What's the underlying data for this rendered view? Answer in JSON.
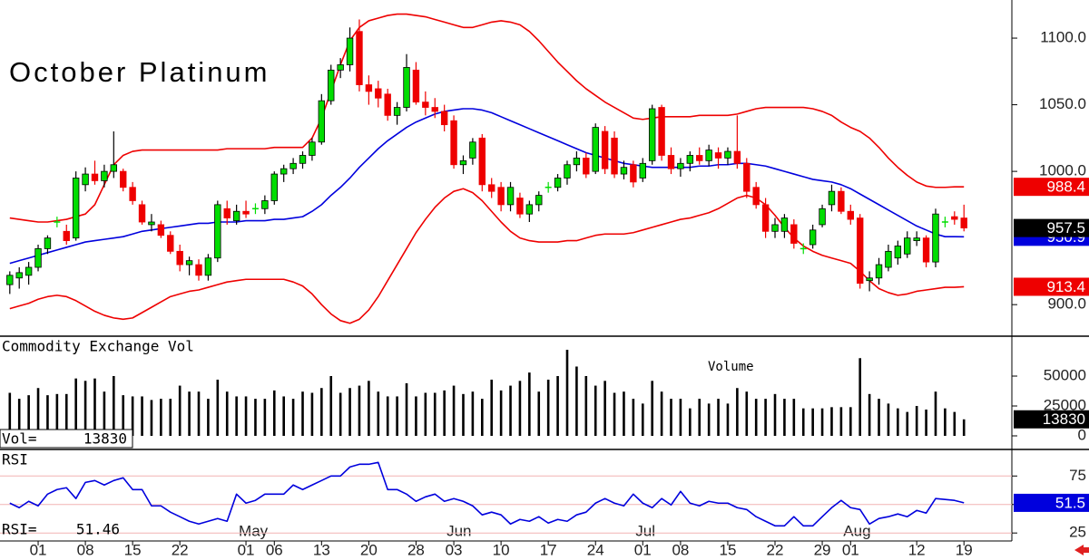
{
  "chart_data": [
    {
      "type": "candlestick",
      "title": "October Platinum",
      "categories": [
        null,
        null,
        null,
        "01",
        null,
        null,
        null,
        null,
        "08",
        null,
        null,
        null,
        null,
        "15",
        null,
        null,
        null,
        null,
        "22",
        null,
        null,
        null,
        null,
        null,
        null,
        "01",
        null,
        null,
        "06",
        null,
        null,
        null,
        null,
        "13",
        null,
        null,
        null,
        null,
        "20",
        null,
        null,
        null,
        null,
        "28",
        null,
        null,
        null,
        "03",
        null,
        null,
        null,
        null,
        "10",
        null,
        null,
        null,
        null,
        "17",
        null,
        null,
        null,
        null,
        "24",
        null,
        null,
        null,
        null,
        "01",
        null,
        null,
        null,
        "08",
        null,
        null,
        null,
        null,
        "15",
        null,
        null,
        null,
        null,
        "22",
        null,
        null,
        null,
        null,
        "29",
        null,
        null,
        "01",
        null,
        null,
        null,
        null,
        null,
        null,
        "12",
        null,
        null,
        null,
        null,
        "19"
      ],
      "months": [
        null,
        null,
        null,
        null,
        null,
        null,
        null,
        null,
        null,
        null,
        null,
        null,
        null,
        null,
        null,
        null,
        null,
        null,
        null,
        null,
        null,
        null,
        null,
        null,
        null,
        "May",
        null,
        null,
        null,
        null,
        null,
        null,
        null,
        null,
        null,
        null,
        null,
        null,
        null,
        null,
        null,
        null,
        null,
        null,
        null,
        null,
        null,
        "Jun",
        null,
        null,
        null,
        null,
        null,
        null,
        null,
        null,
        null,
        null,
        null,
        null,
        null,
        null,
        null,
        null,
        null,
        null,
        null,
        "Jul",
        null,
        null,
        null,
        null,
        null,
        null,
        null,
        null,
        null,
        null,
        null,
        null,
        null,
        null,
        null,
        null,
        null,
        null,
        null,
        null,
        null,
        "Aug",
        null,
        null,
        null,
        null,
        null,
        null,
        null,
        null,
        null,
        null,
        null,
        null
      ],
      "ohlc": [
        [
          915,
          925,
          908,
          922
        ],
        [
          920,
          928,
          912,
          924
        ],
        [
          922,
          932,
          915,
          928
        ],
        [
          928,
          945,
          925,
          942
        ],
        [
          942,
          952,
          938,
          950
        ],
        [
          962,
          966,
          958,
          962
        ],
        [
          955,
          960,
          945,
          948
        ],
        [
          950,
          1000,
          948,
          995
        ],
        [
          990,
          1003,
          985,
          998
        ],
        [
          998,
          1008,
          990,
          993
        ],
        [
          993,
          1005,
          988,
          1000
        ],
        [
          1000,
          1030,
          995,
          1005
        ],
        [
          1000,
          1002,
          985,
          988
        ],
        [
          988,
          992,
          975,
          978
        ],
        [
          975,
          978,
          960,
          962
        ],
        [
          960,
          968,
          955,
          962
        ],
        [
          960,
          963,
          950,
          952
        ],
        [
          952,
          955,
          938,
          940
        ],
        [
          940,
          945,
          925,
          930
        ],
        [
          930,
          936,
          922,
          933
        ],
        [
          930,
          934,
          918,
          922
        ],
        [
          922,
          938,
          918,
          935
        ],
        [
          935,
          978,
          932,
          975
        ],
        [
          972,
          978,
          960,
          965
        ],
        [
          963,
          975,
          960,
          970
        ],
        [
          970,
          978,
          965,
          968
        ],
        [
          972,
          976,
          968,
          972
        ],
        [
          972,
          982,
          968,
          978
        ],
        [
          978,
          1000,
          975,
          998
        ],
        [
          998,
          1005,
          992,
          1002
        ],
        [
          1002,
          1010,
          998,
          1006
        ],
        [
          1006,
          1015,
          1002,
          1012
        ],
        [
          1012,
          1025,
          1008,
          1022
        ],
        [
          1022,
          1058,
          1020,
          1053
        ],
        [
          1053,
          1080,
          1050,
          1076
        ],
        [
          1076,
          1085,
          1070,
          1080
        ],
        [
          1080,
          1108,
          1075,
          1100
        ],
        [
          1105,
          1114,
          1060,
          1065
        ],
        [
          1065,
          1072,
          1050,
          1060
        ],
        [
          1062,
          1068,
          1048,
          1055
        ],
        [
          1058,
          1062,
          1038,
          1042
        ],
        [
          1042,
          1052,
          1035,
          1048
        ],
        [
          1048,
          1088,
          1045,
          1078
        ],
        [
          1076,
          1082,
          1050,
          1052
        ],
        [
          1052,
          1060,
          1042,
          1048
        ],
        [
          1048,
          1055,
          1040,
          1045
        ],
        [
          1045,
          1050,
          1030,
          1035
        ],
        [
          1038,
          1042,
          1002,
          1005
        ],
        [
          1005,
          1012,
          998,
          1008
        ],
        [
          1010,
          1025,
          1005,
          1022
        ],
        [
          1025,
          1028,
          985,
          990
        ],
        [
          990,
          995,
          980,
          985
        ],
        [
          988,
          992,
          970,
          975
        ],
        [
          975,
          992,
          970,
          988
        ],
        [
          980,
          984,
          965,
          968
        ],
        [
          968,
          978,
          962,
          975
        ],
        [
          975,
          985,
          970,
          982
        ],
        [
          988,
          992,
          984,
          988
        ],
        [
          988,
          998,
          985,
          995
        ],
        [
          995,
          1008,
          990,
          1005
        ],
        [
          1005,
          1015,
          1000,
          1010
        ],
        [
          1010,
          1014,
          995,
          998
        ],
        [
          1000,
          1036,
          998,
          1033
        ],
        [
          1030,
          1034,
          998,
          1002
        ],
        [
          1025,
          1030,
          995,
          998
        ],
        [
          998,
          1008,
          994,
          1003
        ],
        [
          1005,
          1008,
          988,
          992
        ],
        [
          995,
          1010,
          992,
          1006
        ],
        [
          1008,
          1050,
          1005,
          1047
        ],
        [
          1048,
          1050,
          1008,
          1012
        ],
        [
          1012,
          1018,
          998,
          1002
        ],
        [
          1002,
          1010,
          996,
          1006
        ],
        [
          1006,
          1015,
          1000,
          1012
        ],
        [
          1012,
          1018,
          1005,
          1008
        ],
        [
          1008,
          1020,
          1004,
          1016
        ],
        [
          1014,
          1018,
          1002,
          1010
        ],
        [
          1010,
          1018,
          1005,
          1015
        ],
        [
          1015,
          1042,
          1002,
          1006
        ],
        [
          1006,
          1010,
          980,
          985
        ],
        [
          988,
          992,
          972,
          975
        ],
        [
          975,
          980,
          950,
          955
        ],
        [
          955,
          965,
          950,
          960
        ],
        [
          955,
          968,
          950,
          965
        ],
        [
          960,
          964,
          942,
          946
        ],
        [
          942,
          946,
          938,
          942
        ],
        [
          945,
          960,
          942,
          956
        ],
        [
          960,
          975,
          958,
          972
        ],
        [
          975,
          990,
          970,
          985
        ],
        [
          985,
          988,
          968,
          970
        ],
        [
          970,
          975,
          960,
          964
        ],
        [
          965,
          968,
          912,
          916
        ],
        [
          918,
          925,
          910,
          920
        ],
        [
          920,
          935,
          915,
          930
        ],
        [
          928,
          945,
          925,
          940
        ],
        [
          935,
          948,
          930,
          944
        ],
        [
          938,
          955,
          935,
          950
        ],
        [
          948,
          955,
          944,
          950
        ],
        [
          950,
          952,
          928,
          932
        ],
        [
          932,
          972,
          928,
          968
        ],
        [
          962,
          966,
          958,
          962
        ],
        [
          966,
          970,
          960,
          964
        ],
        [
          965,
          975,
          955,
          957.5
        ]
      ],
      "upper": [
        965,
        964,
        963,
        962,
        962,
        963,
        964,
        966,
        968,
        975,
        990,
        1005,
        1012,
        1015,
        1016,
        1016,
        1016,
        1016,
        1016,
        1016,
        1016,
        1016,
        1016,
        1017,
        1017,
        1017,
        1017,
        1017,
        1018,
        1018,
        1018,
        1018,
        1025,
        1040,
        1060,
        1080,
        1098,
        1108,
        1113,
        1115,
        1117,
        1118,
        1118,
        1117,
        1116,
        1114,
        1112,
        1110,
        1108,
        1108,
        1110,
        1112,
        1113,
        1112,
        1110,
        1105,
        1098,
        1090,
        1082,
        1075,
        1068,
        1062,
        1057,
        1052,
        1048,
        1044,
        1040,
        1039,
        1040,
        1041,
        1041,
        1041,
        1041,
        1042,
        1042,
        1042,
        1042,
        1043,
        1045,
        1047,
        1048,
        1048,
        1048,
        1048,
        1048,
        1047,
        1045,
        1042,
        1037,
        1033,
        1030,
        1025,
        1018,
        1010,
        1003,
        997,
        992,
        989,
        988,
        988,
        988.4,
        988.4
      ],
      "middle": [
        931,
        933,
        935,
        937,
        939,
        941,
        943,
        945,
        947,
        948,
        949,
        950,
        951,
        953,
        955,
        956,
        957,
        958,
        959,
        960,
        961,
        961,
        962,
        962,
        962,
        963,
        963,
        963,
        964,
        964,
        965,
        966,
        970,
        975,
        982,
        988,
        995,
        1003,
        1010,
        1017,
        1023,
        1028,
        1033,
        1037,
        1040,
        1043,
        1045,
        1046,
        1047,
        1047,
        1046,
        1044,
        1041,
        1038,
        1035,
        1032,
        1029,
        1026,
        1023,
        1020,
        1017,
        1014,
        1012,
        1010,
        1008,
        1006,
        1005,
        1004,
        1003,
        1003,
        1003,
        1003,
        1003,
        1004,
        1004,
        1005,
        1005,
        1006,
        1006,
        1005,
        1004,
        1002,
        1000,
        998,
        996,
        994,
        993,
        992,
        990,
        987,
        983,
        979,
        975,
        971,
        967,
        963,
        959,
        956,
        953,
        951,
        951,
        950.9
      ],
      "lower": [
        897,
        899,
        901,
        904,
        906,
        907,
        906,
        903,
        899,
        895,
        892,
        890,
        889,
        890,
        894,
        898,
        902,
        906,
        908,
        910,
        911,
        913,
        915,
        917,
        918,
        919,
        919,
        919,
        919,
        919,
        917,
        914,
        908,
        900,
        893,
        888,
        886,
        889,
        896,
        906,
        918,
        930,
        942,
        954,
        964,
        973,
        980,
        985,
        987,
        984,
        978,
        970,
        962,
        955,
        950,
        948,
        947,
        947,
        947,
        948,
        948,
        950,
        952,
        953,
        953,
        953,
        954,
        956,
        958,
        960,
        962,
        964,
        965,
        967,
        969,
        972,
        976,
        980,
        982,
        980,
        975,
        967,
        958,
        950,
        944,
        940,
        937,
        935,
        933,
        931,
        925,
        918,
        912,
        909,
        907,
        908,
        910,
        911,
        912,
        913,
        913,
        913.4
      ],
      "up_color": "#00dd00",
      "down_color": "#ee0000",
      "band_color": "#ee0000",
      "middle_color": "#0000dd",
      "last_color": "#000000",
      "ylim": [
        877,
        1128.6
      ],
      "yticks": [
        {
          "value": 900,
          "label": "900.0"
        },
        {
          "value": 1000,
          "label": "1000.0"
        },
        {
          "value": 1050,
          "label": "1050.0"
        },
        {
          "value": 1100,
          "label": "1100.0"
        }
      ]
    },
    {
      "type": "bar",
      "title": "Commodity Exchange Vol",
      "annotation": "Volume",
      "readout_label": "Vol=",
      "values": [
        36000,
        31000,
        34000,
        40000,
        34000,
        35000,
        35000,
        48000,
        46000,
        48000,
        37000,
        50000,
        34000,
        33000,
        33000,
        30000,
        31000,
        31000,
        42000,
        37000,
        37000,
        31000,
        47000,
        37000,
        33000,
        33000,
        31000,
        31000,
        38000,
        33000,
        31000,
        37000,
        36000,
        40000,
        50000,
        36000,
        40000,
        42000,
        46000,
        37000,
        33000,
        33000,
        44000,
        33000,
        36000,
        36000,
        38000,
        42000,
        35000,
        37000,
        31000,
        47000,
        38000,
        42000,
        46000,
        53000,
        37000,
        47000,
        50000,
        72000,
        58000,
        50000,
        42000,
        46000,
        36000,
        37000,
        31000,
        27000,
        46000,
        37000,
        31000,
        31000,
        23000,
        31000,
        27000,
        31000,
        27000,
        40000,
        37000,
        31000,
        31000,
        35000,
        31000,
        31000,
        23000,
        23000,
        23000,
        24000,
        24000,
        24000,
        65000,
        35000,
        31000,
        27000,
        23000,
        20000,
        25000,
        22000,
        37000,
        23000,
        20000,
        13830
      ],
      "color": "#000000",
      "ylim": [
        -10600,
        82600
      ],
      "yticks": [
        0,
        25000,
        50000
      ]
    },
    {
      "type": "line",
      "title": "RSI",
      "readout_label": "RSI=",
      "values": [
        51.2,
        47.2,
        52.8,
        48.8,
        59.1,
        63.1,
        64.7,
        55.2,
        69.4,
        71.0,
        67.1,
        71.0,
        73.4,
        63.1,
        63.1,
        48.8,
        48.8,
        43.3,
        39.3,
        35.3,
        32.9,
        35.3,
        37.7,
        35.3,
        59.1,
        51.2,
        53.6,
        59.1,
        59.1,
        59.1,
        67.1,
        63.1,
        67.1,
        71.0,
        75.0,
        75.0,
        82.9,
        85.3,
        85.3,
        86.9,
        63.1,
        63.1,
        59.1,
        52.8,
        56.7,
        59.1,
        52.8,
        55.2,
        52.8,
        48.8,
        40.9,
        43.3,
        40.9,
        32.9,
        36.9,
        35.3,
        39.3,
        33.7,
        36.9,
        35.3,
        40.9,
        43.3,
        51.2,
        55.2,
        51.2,
        48.8,
        59.1,
        51.2,
        47.2,
        55.2,
        49.6,
        61.5,
        51.2,
        48.8,
        52.8,
        51.2,
        51.2,
        47.2,
        45.6,
        39.3,
        35.3,
        31.3,
        31.3,
        39.3,
        31.3,
        31.3,
        39.3,
        47.2,
        53.6,
        47.2,
        45.6,
        32.9,
        37.7,
        39.3,
        41.7,
        39.3,
        44.8,
        42.5,
        55.2,
        54.4,
        53.6,
        51.46
      ],
      "last_value_label": "51.5",
      "color": "#0000dd",
      "grid": true,
      "grid_color": "#f2b4b4",
      "ylim": [
        18,
        97.5
      ],
      "yticks": [
        25,
        50,
        75
      ]
    }
  ]
}
